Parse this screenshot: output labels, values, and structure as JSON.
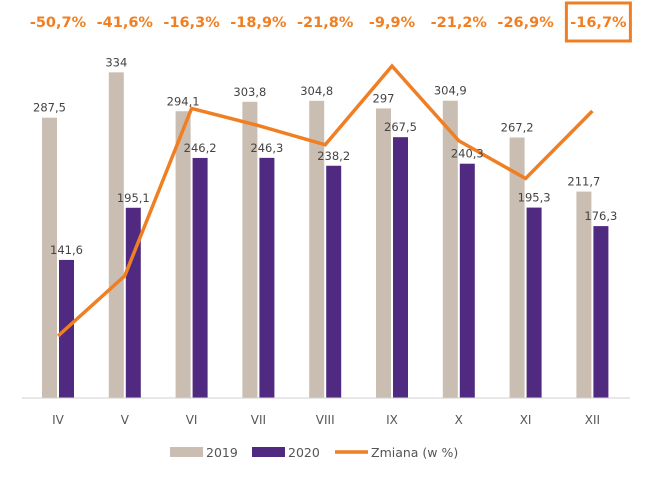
{
  "chart_data": {
    "type": "bar",
    "categories": [
      "IV",
      "V",
      "VI",
      "VII",
      "VIII",
      "IX",
      "X",
      "XI",
      "XII"
    ],
    "series": [
      {
        "name": "2019",
        "values": [
          287.5,
          334,
          294.1,
          303.8,
          304.8,
          297,
          304.9,
          267.2,
          211.7
        ],
        "labels": [
          "287,5",
          "334",
          "294,1",
          "303,8",
          "304,8",
          "297",
          "304,9",
          "267,2",
          "211,7"
        ]
      },
      {
        "name": "2020",
        "values": [
          141.6,
          195.1,
          246.2,
          246.3,
          238.2,
          267.5,
          240.3,
          195.3,
          176.3
        ],
        "labels": [
          "141,6",
          "195,1",
          "246,2",
          "246,3",
          "238,2",
          "267,5",
          "240,3",
          "195,3",
          "176,3"
        ]
      }
    ],
    "change": {
      "name": "Zmiana (w %)",
      "values": [
        -50.7,
        -41.6,
        -16.3,
        -18.9,
        -21.8,
        -9.9,
        -21.2,
        -26.9,
        -16.7
      ],
      "labels": [
        "-50,7%",
        "-41,6%",
        "-16,3%",
        "-18,9%",
        "-21,8%",
        "-9,9%",
        "-21,2%",
        "-26,9%",
        "-16,7%"
      ],
      "highlighted_index": 8
    },
    "ylim": [
      0,
      360
    ],
    "grid": false,
    "legend": "bottom",
    "colors": {
      "2019": "#C9BEB1",
      "2020": "#4F2A80",
      "change": "#F07F23",
      "axis": "#D0D0D0"
    }
  }
}
